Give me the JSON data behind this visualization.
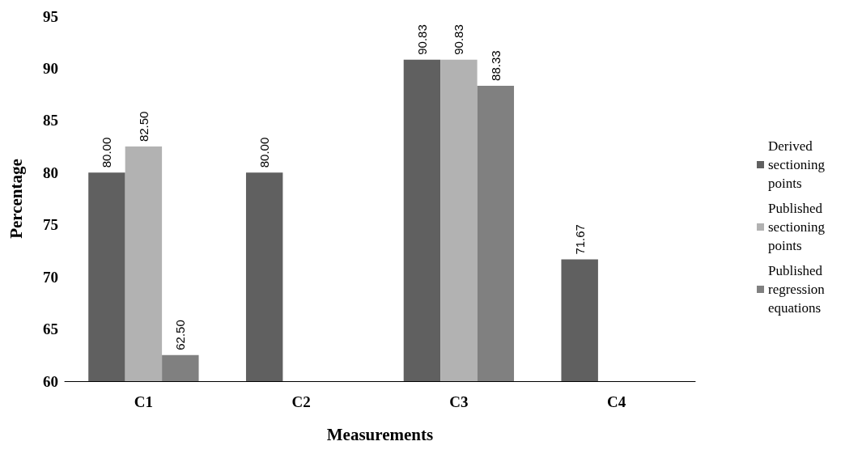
{
  "chart_data": {
    "type": "bar",
    "xlabel": "Measurements",
    "ylabel": "Percentage",
    "categories": [
      "C1",
      "C2",
      "C3",
      "C4"
    ],
    "series": [
      {
        "name": "Derived sectioning points",
        "color": "#606060",
        "values": [
          80.0,
          80.0,
          90.83,
          71.67
        ],
        "value_labels": [
          "80.00",
          "80.00",
          "90.83",
          "71.67"
        ]
      },
      {
        "name": "Published sectioning points",
        "color": "#b2b2b2",
        "values": [
          82.5,
          null,
          90.83,
          null
        ],
        "value_labels": [
          "82.50",
          null,
          "90.83",
          null
        ]
      },
      {
        "name": "Published regression equations",
        "color": "#808080",
        "values": [
          62.5,
          null,
          88.33,
          null
        ],
        "value_labels": [
          "62.50",
          null,
          "88.33",
          null
        ]
      }
    ],
    "ylim": [
      60,
      95
    ],
    "yticks": [
      60,
      65,
      70,
      75,
      80,
      85,
      90,
      95
    ],
    "grid": false,
    "legend": "right"
  }
}
